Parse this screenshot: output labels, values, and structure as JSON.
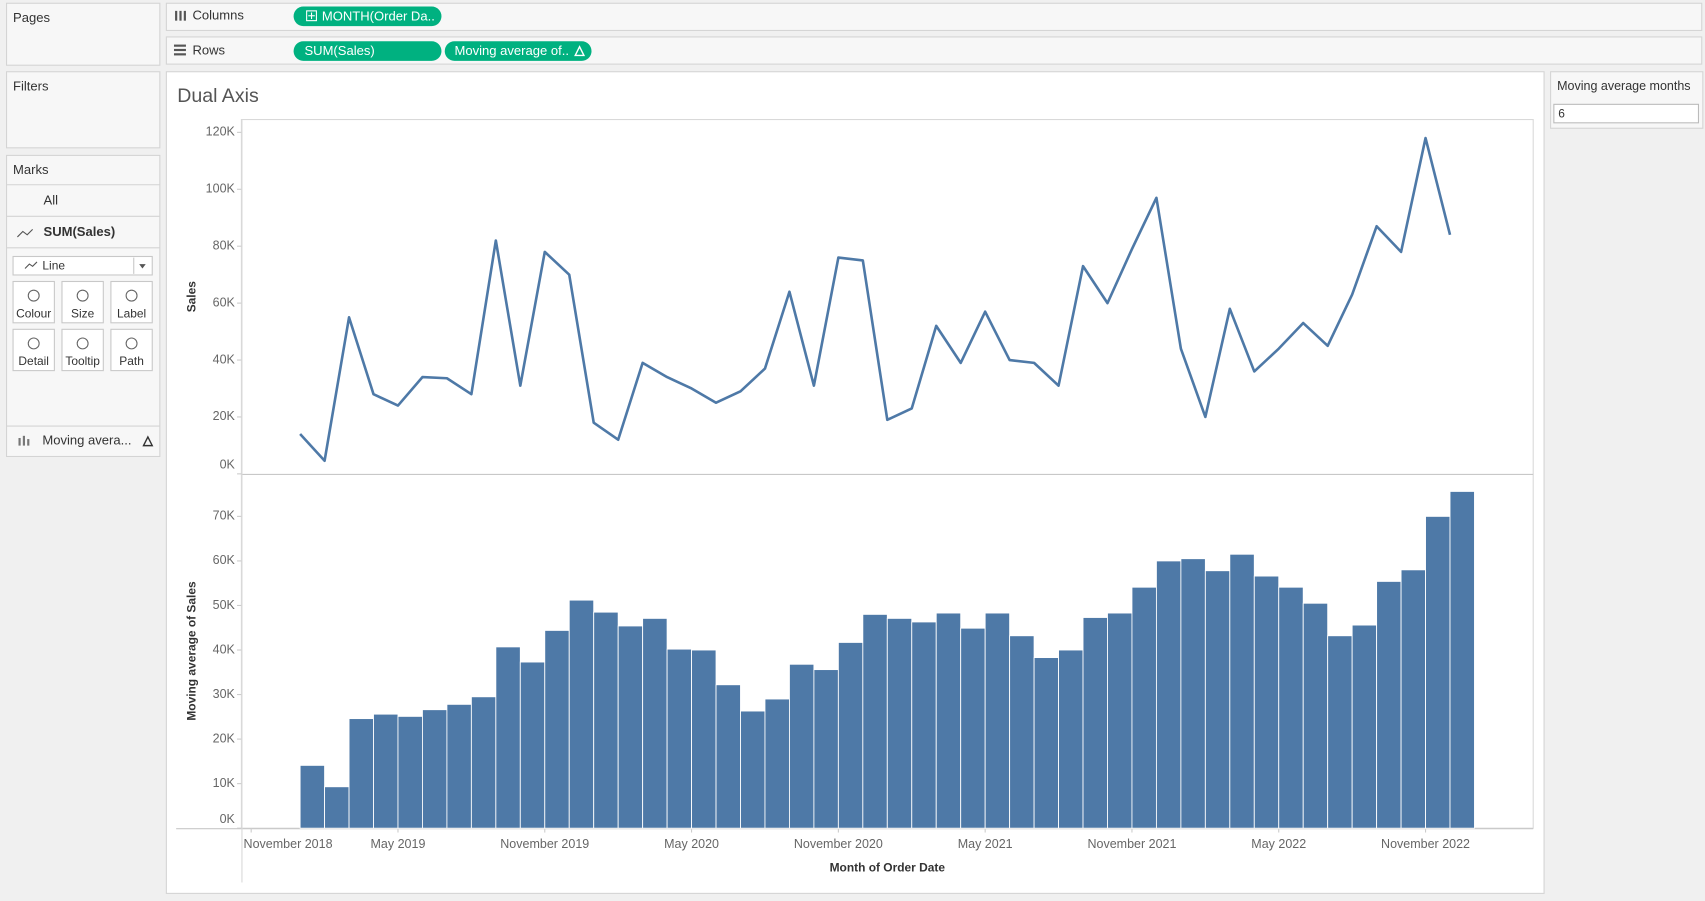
{
  "shelves": {
    "pages": "Pages",
    "columns_label": "Columns",
    "columns_pills": [
      "MONTH(Order Da.."
    ],
    "rows_label": "Rows",
    "rows_pills": [
      "SUM(Sales)",
      "Moving average of.."
    ]
  },
  "filters": "Filters",
  "marks": {
    "title": "Marks",
    "cards": [
      "All",
      "SUM(Sales)"
    ],
    "mark_type": "Line",
    "buttons": [
      "Colour",
      "Size",
      "Label",
      "Detail",
      "Tooltip",
      "Path"
    ],
    "field": "Moving avera..."
  },
  "parameter": {
    "title": "Moving average months",
    "value": "6"
  },
  "chart_data": [
    {
      "type": "line",
      "title": "Dual Axis",
      "y_label": "Sales",
      "color": "#4e79a7",
      "x": [
        "2019-01",
        "2019-02",
        "2019-03",
        "2019-04",
        "2019-05",
        "2019-06",
        "2019-07",
        "2019-08",
        "2019-09",
        "2019-10",
        "2019-11",
        "2019-12",
        "2020-01",
        "2020-02",
        "2020-03",
        "2020-04",
        "2020-05",
        "2020-06",
        "2020-07",
        "2020-08",
        "2020-09",
        "2020-10",
        "2020-11",
        "2020-12",
        "2021-01",
        "2021-02",
        "2021-03",
        "2021-04",
        "2021-05",
        "2021-06",
        "2021-07",
        "2021-08",
        "2021-09",
        "2021-10",
        "2021-11",
        "2021-12",
        "2022-01",
        "2022-02",
        "2022-03",
        "2022-04",
        "2022-05",
        "2022-06",
        "2022-07",
        "2022-08",
        "2022-09",
        "2022-10",
        "2022-11",
        "2022-12"
      ],
      "values": [
        14000,
        4600,
        55000,
        28000,
        24000,
        34000,
        33600,
        28000,
        82000,
        31000,
        78000,
        70000,
        18000,
        12000,
        39000,
        34000,
        30000,
        25000,
        29000,
        37000,
        64000,
        31000,
        76000,
        75000,
        19000,
        23000,
        52000,
        39000,
        57000,
        40000,
        39000,
        31000,
        73000,
        60000,
        79000,
        97000,
        44000,
        20000,
        58000,
        36000,
        44000,
        53000,
        45000,
        63000,
        87000,
        78000,
        118000,
        84000
      ],
      "xlim": [
        "2018-11",
        "2023-02"
      ],
      "ylim": [
        0,
        124500
      ],
      "yticks": [
        {
          "value": 0,
          "label": "0K"
        },
        {
          "value": 20000,
          "label": "20K"
        },
        {
          "value": 40000,
          "label": "40K"
        },
        {
          "value": 60000,
          "label": "60K"
        },
        {
          "value": 80000,
          "label": "80K"
        },
        {
          "value": 100000,
          "label": "100K"
        },
        {
          "value": 120000,
          "label": "120K"
        }
      ]
    },
    {
      "type": "bar",
      "y_label": "Moving average of Sales",
      "x_label": "Month of Order Date",
      "color": "#4e79a7",
      "x": [
        "2019-01",
        "2019-02",
        "2019-03",
        "2019-04",
        "2019-05",
        "2019-06",
        "2019-07",
        "2019-08",
        "2019-09",
        "2019-10",
        "2019-11",
        "2019-12",
        "2020-01",
        "2020-02",
        "2020-03",
        "2020-04",
        "2020-05",
        "2020-06",
        "2020-07",
        "2020-08",
        "2020-09",
        "2020-10",
        "2020-11",
        "2020-12",
        "2021-01",
        "2021-02",
        "2021-03",
        "2021-04",
        "2021-05",
        "2021-06",
        "2021-07",
        "2021-08",
        "2021-09",
        "2021-10",
        "2021-11",
        "2021-12",
        "2022-01",
        "2022-02",
        "2022-03",
        "2022-04",
        "2022-05",
        "2022-06",
        "2022-07",
        "2022-08",
        "2022-09",
        "2022-10",
        "2022-11",
        "2022-12"
      ],
      "values": [
        14100,
        9300,
        24600,
        25600,
        25100,
        26600,
        27800,
        29500,
        40700,
        37300,
        44400,
        51200,
        48500,
        45400,
        47100,
        40200,
        40000,
        32200,
        26300,
        29000,
        36800,
        35600,
        41700,
        48000,
        47100,
        46300,
        48300,
        44900,
        48300,
        43200,
        38300,
        40000,
        47300,
        48300,
        54100,
        60000,
        60500,
        57800,
        61500,
        56600,
        54100,
        50500,
        43200,
        45600,
        55400,
        58000,
        70000,
        75600
      ],
      "xlim": [
        "2018-11",
        "2023-02"
      ],
      "ylim": [
        0,
        79300
      ],
      "yticks": [
        {
          "value": 0,
          "label": "0K"
        },
        {
          "value": 10000,
          "label": "10K"
        },
        {
          "value": 20000,
          "label": "20K"
        },
        {
          "value": 30000,
          "label": "30K"
        },
        {
          "value": 40000,
          "label": "40K"
        },
        {
          "value": 50000,
          "label": "50K"
        },
        {
          "value": 60000,
          "label": "60K"
        },
        {
          "value": 70000,
          "label": "70K"
        }
      ],
      "xticks": [
        {
          "value": "2018-11",
          "label": "November 2018"
        },
        {
          "value": "2019-05",
          "label": "May 2019"
        },
        {
          "value": "2019-11",
          "label": "November 2019"
        },
        {
          "value": "2020-05",
          "label": "May 2020"
        },
        {
          "value": "2020-11",
          "label": "November 2020"
        },
        {
          "value": "2021-05",
          "label": "May 2021"
        },
        {
          "value": "2021-11",
          "label": "November 2021"
        },
        {
          "value": "2022-05",
          "label": "May 2022"
        },
        {
          "value": "2022-11",
          "label": "November 2022"
        }
      ]
    }
  ]
}
